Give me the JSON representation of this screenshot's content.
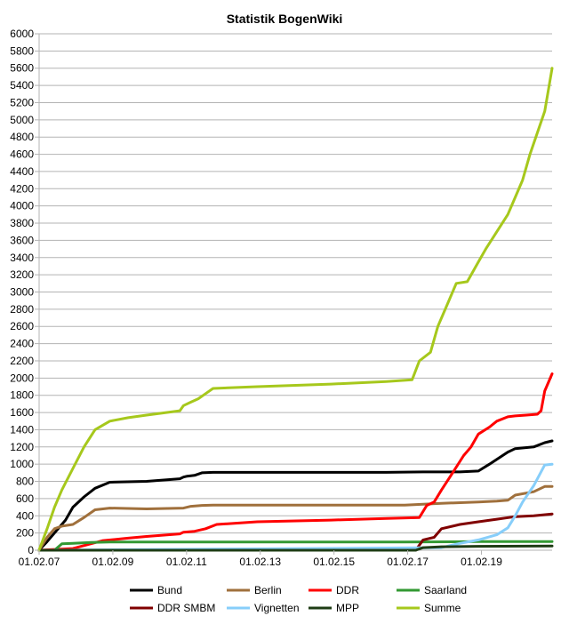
{
  "chart_data": {
    "type": "line",
    "title": "Statistik BogenWiki",
    "ylim": [
      0,
      6000
    ],
    "y_ticks": [
      0,
      200,
      400,
      600,
      800,
      1000,
      1200,
      1400,
      1600,
      1800,
      2000,
      2200,
      2400,
      2600,
      2800,
      3000,
      3200,
      3400,
      3600,
      3800,
      4000,
      4200,
      4400,
      4600,
      4800,
      5000,
      5200,
      5400,
      5600,
      5800,
      6000
    ],
    "y_tick_labels": [
      "0",
      "200",
      "400",
      "600",
      "800",
      "1000",
      "1200",
      "1400",
      "1600",
      "1800",
      "2000",
      "2200",
      "2400",
      "2600",
      "2800",
      "3000",
      "3200",
      "3400",
      "3600",
      "3800",
      "4000",
      "4200",
      "4400",
      "4600",
      "4800",
      "5000",
      "5200",
      "5400",
      "5600",
      "5800",
      "6000"
    ],
    "xlim": [
      2007.083,
      2021.0
    ],
    "x_ticks": [
      2007.083,
      2009.083,
      2011.083,
      2013.083,
      2015.083,
      2017.083,
      2019.083
    ],
    "x_tick_labels": [
      "01.02.07",
      "01.02.09",
      "01.02.11",
      "01.02.13",
      "01.02.15",
      "01.02.17",
      "01.02.19"
    ],
    "grid": "horizontal",
    "legend_position": "bottom",
    "series": [
      {
        "name": "Bund",
        "color": "#000000",
        "x": [
          2007.08,
          2007.3,
          2007.6,
          2007.8,
          2008.0,
          2008.3,
          2008.6,
          2009.0,
          2010.0,
          2010.9,
          2011.0,
          2011.1,
          2011.3,
          2011.5,
          2011.8,
          2013.0,
          2015.0,
          2016.5,
          2017.5,
          2018.0,
          2018.5,
          2019.0,
          2019.3,
          2019.8,
          2020.0,
          2020.5,
          2020.8,
          2021.0
        ],
        "values": [
          0,
          100,
          250,
          350,
          500,
          620,
          720,
          790,
          800,
          830,
          850,
          860,
          870,
          900,
          905,
          905,
          905,
          905,
          910,
          910,
          910,
          920,
          1000,
          1140,
          1180,
          1200,
          1250,
          1270
        ]
      },
      {
        "name": "Berlin",
        "color": "#a0703c",
        "x": [
          2007.08,
          2007.3,
          2007.5,
          2007.7,
          2008.0,
          2008.3,
          2008.6,
          2009.0,
          2010.0,
          2011.0,
          2011.2,
          2011.5,
          2011.8,
          2013.0,
          2015.0,
          2017.0,
          2017.5,
          2018.0,
          2019.0,
          2019.5,
          2019.8,
          2020.0,
          2020.5,
          2020.8,
          2021.0
        ],
        "values": [
          0,
          150,
          250,
          280,
          300,
          380,
          470,
          490,
          480,
          490,
          510,
          520,
          525,
          525,
          525,
          525,
          535,
          545,
          560,
          570,
          580,
          640,
          680,
          740,
          740
        ]
      },
      {
        "name": "DDR",
        "color": "#ff0000",
        "x": [
          2007.08,
          2008.0,
          2008.8,
          2009.5,
          2010.0,
          2010.9,
          2011.0,
          2011.3,
          2011.6,
          2011.9,
          2013.0,
          2015.0,
          2016.5,
          2017.4,
          2017.6,
          2017.8,
          2018.0,
          2018.3,
          2018.6,
          2018.8,
          2019.0,
          2019.3,
          2019.5,
          2019.8,
          2020.0,
          2020.3,
          2020.6,
          2020.7,
          2020.8,
          2021.0
        ],
        "values": [
          0,
          20,
          110,
          140,
          160,
          190,
          210,
          220,
          250,
          300,
          330,
          350,
          370,
          380,
          520,
          560,
          700,
          900,
          1100,
          1200,
          1350,
          1430,
          1500,
          1550,
          1560,
          1570,
          1580,
          1620,
          1850,
          2050
        ]
      },
      {
        "name": "Saarland",
        "color": "#339933",
        "x": [
          2007.08,
          2007.5,
          2007.7,
          2008.0,
          2008.5,
          2009.0,
          2013.0,
          2017.0,
          2019.0,
          2021.0
        ],
        "values": [
          0,
          0,
          75,
          80,
          90,
          95,
          95,
          95,
          100,
          100
        ]
      },
      {
        "name": "DDR SMBM",
        "color": "#800000",
        "x": [
          2007.08,
          2017.3,
          2017.5,
          2017.8,
          2018.0,
          2018.5,
          2019.0,
          2019.5,
          2020.0,
          2020.5,
          2021.0
        ],
        "values": [
          0,
          0,
          120,
          150,
          250,
          300,
          330,
          360,
          390,
          400,
          420
        ]
      },
      {
        "name": "Vignetten",
        "color": "#87cefa",
        "x": [
          2007.08,
          2018.0,
          2018.5,
          2019.0,
          2019.5,
          2019.8,
          2020.0,
          2020.2,
          2020.5,
          2020.8,
          2021.0
        ],
        "values": [
          0,
          30,
          80,
          120,
          180,
          260,
          400,
          560,
          750,
          990,
          1000
        ]
      },
      {
        "name": "MPP",
        "color": "#1e3c14",
        "x": [
          2007.08,
          2016.0,
          2017.3,
          2017.5,
          2018.0,
          2019.0,
          2021.0
        ],
        "values": [
          0,
          0,
          0,
          30,
          40,
          45,
          50
        ]
      },
      {
        "name": "Summe",
        "color": "#a6c81c",
        "x": [
          2007.08,
          2007.3,
          2007.5,
          2007.7,
          2008.0,
          2008.3,
          2008.6,
          2009.0,
          2009.5,
          2010.0,
          2010.9,
          2011.0,
          2011.2,
          2011.4,
          2011.6,
          2011.8,
          2013.0,
          2015.0,
          2016.5,
          2017.2,
          2017.4,
          2017.7,
          2017.9,
          2018.1,
          2018.4,
          2018.7,
          2019.0,
          2019.2,
          2019.5,
          2019.8,
          2020.0,
          2020.2,
          2020.4,
          2020.6,
          2020.8,
          2021.0
        ],
        "values": [
          0,
          250,
          500,
          700,
          950,
          1200,
          1400,
          1500,
          1540,
          1570,
          1620,
          1680,
          1720,
          1760,
          1820,
          1880,
          1900,
          1930,
          1960,
          1980,
          2200,
          2300,
          2600,
          2800,
          3100,
          3120,
          3350,
          3500,
          3700,
          3900,
          4100,
          4300,
          4600,
          4850,
          5100,
          5600
        ]
      }
    ]
  }
}
